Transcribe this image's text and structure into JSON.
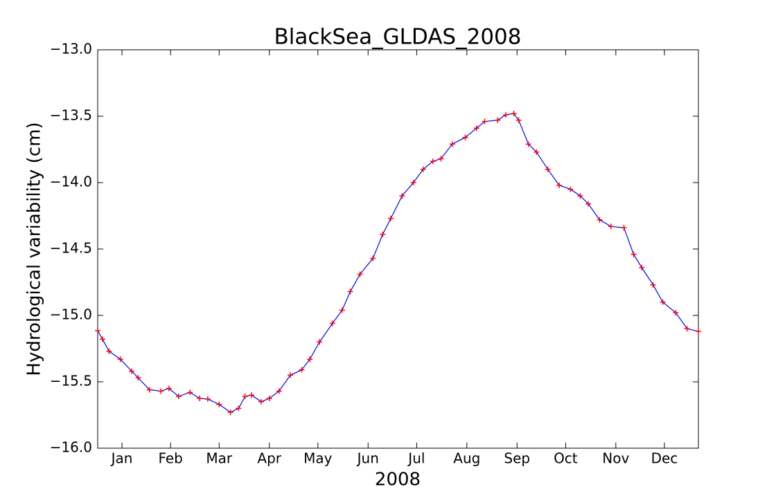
{
  "chart_data": {
    "type": "line",
    "title": "BlackSea_GLDAS_2008",
    "xlabel": "2008",
    "ylabel": "Hydrological variability (cm)",
    "x": [
      0,
      3,
      7,
      14,
      21,
      25,
      32,
      39,
      44,
      50,
      57,
      63,
      68,
      75,
      82,
      87,
      91,
      95,
      101,
      106,
      112,
      119,
      126,
      131,
      137,
      145,
      151,
      156,
      162,
      170,
      176,
      181,
      188,
      195,
      201,
      207,
      212,
      219,
      227,
      234,
      239,
      247,
      252,
      257,
      260,
      266,
      271,
      278,
      285,
      292,
      298,
      303,
      310,
      317,
      325,
      331,
      336,
      343,
      349,
      357,
      364,
      371
    ],
    "series": [
      {
        "color": "#0000ff",
        "marker_color": "#ff0000",
        "values": [
          -15.115,
          -15.18,
          -15.27,
          -15.33,
          -15.42,
          -15.47,
          -15.56,
          -15.57,
          -15.55,
          -15.61,
          -15.58,
          -15.625,
          -15.63,
          -15.67,
          -15.73,
          -15.7,
          -15.61,
          -15.6,
          -15.65,
          -15.625,
          -15.57,
          -15.45,
          -15.41,
          -15.33,
          -15.2,
          -15.06,
          -14.96,
          -14.82,
          -14.69,
          -14.57,
          -14.39,
          -14.27,
          -14.1,
          -14.0,
          -13.9,
          -13.84,
          -13.82,
          -13.71,
          -13.66,
          -13.59,
          -13.54,
          -13.53,
          -13.49,
          -13.48,
          -13.53,
          -13.71,
          -13.77,
          -13.9,
          -14.02,
          -14.05,
          -14.1,
          -14.16,
          -14.28,
          -14.33,
          -14.34,
          -14.54,
          -14.64,
          -14.77,
          -14.9,
          -14.98,
          -15.1,
          -15.12
        ]
      }
    ],
    "xlim": [
      0,
      371
    ],
    "xticks": [
      {
        "value": 15,
        "label": "Jan"
      },
      {
        "value": 45,
        "label": "Feb"
      },
      {
        "value": 75,
        "label": "Mar"
      },
      {
        "value": 106,
        "label": "Apr"
      },
      {
        "value": 136,
        "label": "May"
      },
      {
        "value": 167,
        "label": "Jun"
      },
      {
        "value": 197,
        "label": "Jul"
      },
      {
        "value": 228,
        "label": "Aug"
      },
      {
        "value": 259,
        "label": "Sep"
      },
      {
        "value": 289,
        "label": "Oct"
      },
      {
        "value": 320,
        "label": "Nov"
      },
      {
        "value": 350,
        "label": "Dec"
      }
    ],
    "ylim": [
      -16.0,
      -13.0
    ],
    "yticks": [
      {
        "value": -16.0,
        "label": "−16.0"
      },
      {
        "value": -15.5,
        "label": "−15.5"
      },
      {
        "value": -15.0,
        "label": "−15.0"
      },
      {
        "value": -14.5,
        "label": "−14.5"
      },
      {
        "value": -14.0,
        "label": "−14.0"
      },
      {
        "value": -13.5,
        "label": "−13.5"
      },
      {
        "value": -13.0,
        "label": "−13.0"
      }
    ]
  }
}
